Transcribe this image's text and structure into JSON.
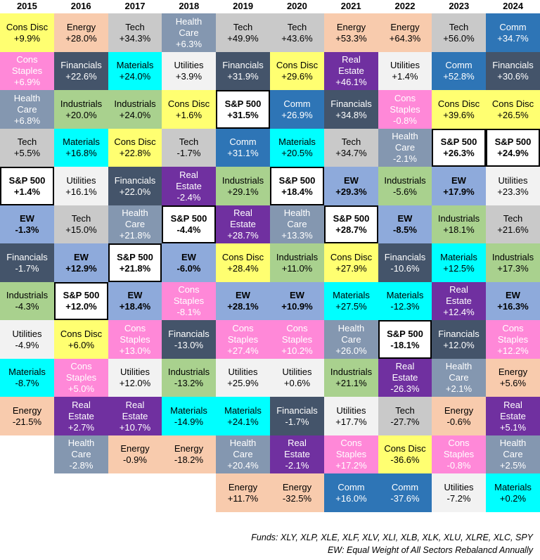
{
  "chart_data": {
    "type": "table",
    "title": "",
    "years": [
      "2015",
      "2016",
      "2017",
      "2018",
      "2019",
      "2020",
      "2021",
      "2022",
      "2023",
      "2024"
    ],
    "columns": [
      [
        {
          "sector": "Cons Disc",
          "ret": "+9.9%"
        },
        {
          "sector": "Cons Staples",
          "ret": "+6.9%"
        },
        {
          "sector": "Health Care",
          "ret": "+6.8%"
        },
        {
          "sector": "Tech",
          "ret": "+5.5%"
        },
        {
          "sector": "S&P 500",
          "ret": "+1.4%"
        },
        {
          "sector": "EW",
          "ret": "-1.3%"
        },
        {
          "sector": "Financials",
          "ret": "-1.7%"
        },
        {
          "sector": "Industrials",
          "ret": "-4.3%"
        },
        {
          "sector": "Utilities",
          "ret": "-4.9%"
        },
        {
          "sector": "Materials",
          "ret": "-8.7%"
        },
        {
          "sector": "Energy",
          "ret": "-21.5%"
        }
      ],
      [
        {
          "sector": "Energy",
          "ret": "+28.0%"
        },
        {
          "sector": "Financials",
          "ret": "+22.6%"
        },
        {
          "sector": "Industrials",
          "ret": "+20.0%"
        },
        {
          "sector": "Materials",
          "ret": "+16.8%"
        },
        {
          "sector": "Utilities",
          "ret": "+16.1%"
        },
        {
          "sector": "Tech",
          "ret": "+15.0%"
        },
        {
          "sector": "EW",
          "ret": "+12.9%"
        },
        {
          "sector": "S&P 500",
          "ret": "+12.0%"
        },
        {
          "sector": "Cons Disc",
          "ret": "+6.0%"
        },
        {
          "sector": "Cons Staples",
          "ret": "+5.0%"
        },
        {
          "sector": "Real Estate",
          "ret": "+2.7%"
        },
        {
          "sector": "Health Care",
          "ret": "-2.8%"
        }
      ],
      [
        {
          "sector": "Tech",
          "ret": "+34.3%"
        },
        {
          "sector": "Materials",
          "ret": "+24.0%"
        },
        {
          "sector": "Industrials",
          "ret": "+24.0%"
        },
        {
          "sector": "Cons Disc",
          "ret": "+22.8%"
        },
        {
          "sector": "Financials",
          "ret": "+22.0%"
        },
        {
          "sector": "Health Care",
          "ret": "+21.8%"
        },
        {
          "sector": "S&P 500",
          "ret": "+21.8%"
        },
        {
          "sector": "EW",
          "ret": "+18.4%"
        },
        {
          "sector": "Cons Staples",
          "ret": "+13.0%"
        },
        {
          "sector": "Utilities",
          "ret": "+12.0%"
        },
        {
          "sector": "Real Estate",
          "ret": "+10.7%"
        },
        {
          "sector": "Energy",
          "ret": "-0.9%"
        }
      ],
      [
        {
          "sector": "Health Care",
          "ret": "+6.3%"
        },
        {
          "sector": "Utilities",
          "ret": "+3.9%"
        },
        {
          "sector": "Cons Disc",
          "ret": "+1.6%"
        },
        {
          "sector": "Tech",
          "ret": "-1.7%"
        },
        {
          "sector": "Real Estate",
          "ret": "-2.4%"
        },
        {
          "sector": "S&P 500",
          "ret": "-4.4%"
        },
        {
          "sector": "EW",
          "ret": "-6.0%"
        },
        {
          "sector": "Cons Staples",
          "ret": "-8.1%"
        },
        {
          "sector": "Financials",
          "ret": "-13.0%"
        },
        {
          "sector": "Industrials",
          "ret": "-13.2%"
        },
        {
          "sector": "Materials",
          "ret": "-14.9%"
        },
        {
          "sector": "Energy",
          "ret": "-18.2%"
        }
      ],
      [
        {
          "sector": "Tech",
          "ret": "+49.9%"
        },
        {
          "sector": "Financials",
          "ret": "+31.9%"
        },
        {
          "sector": "S&P 500",
          "ret": "+31.5%"
        },
        {
          "sector": "Comm",
          "ret": "+31.1%"
        },
        {
          "sector": "Industrials",
          "ret": "+29.1%"
        },
        {
          "sector": "Real Estate",
          "ret": "+28.7%"
        },
        {
          "sector": "Cons Disc",
          "ret": "+28.4%"
        },
        {
          "sector": "EW",
          "ret": "+28.1%"
        },
        {
          "sector": "Cons Staples",
          "ret": "+27.4%"
        },
        {
          "sector": "Utilities",
          "ret": "+25.9%"
        },
        {
          "sector": "Materials",
          "ret": "+24.1%"
        },
        {
          "sector": "Health Care",
          "ret": "+20.4%"
        },
        {
          "sector": "Energy",
          "ret": "+11.7%"
        }
      ],
      [
        {
          "sector": "Tech",
          "ret": "+43.6%"
        },
        {
          "sector": "Cons Disc",
          "ret": "+29.6%"
        },
        {
          "sector": "Comm",
          "ret": "+26.9%"
        },
        {
          "sector": "Materials",
          "ret": "+20.5%"
        },
        {
          "sector": "S&P 500",
          "ret": "+18.4%"
        },
        {
          "sector": "Health Care",
          "ret": "+13.3%"
        },
        {
          "sector": "Industrials",
          "ret": "+11.0%"
        },
        {
          "sector": "EW",
          "ret": "+10.9%"
        },
        {
          "sector": "Cons Staples",
          "ret": "+10.2%"
        },
        {
          "sector": "Utilities",
          "ret": "+0.6%"
        },
        {
          "sector": "Financials",
          "ret": "-1.7%"
        },
        {
          "sector": "Real Estate",
          "ret": "-2.1%"
        },
        {
          "sector": "Energy",
          "ret": "-32.5%"
        }
      ],
      [
        {
          "sector": "Energy",
          "ret": "+53.3%"
        },
        {
          "sector": "Real Estate",
          "ret": "+46.1%"
        },
        {
          "sector": "Financials",
          "ret": "+34.8%"
        },
        {
          "sector": "Tech",
          "ret": "+34.7%"
        },
        {
          "sector": "EW",
          "ret": "+29.3%"
        },
        {
          "sector": "S&P 500",
          "ret": "+28.7%"
        },
        {
          "sector": "Cons Disc",
          "ret": "+27.9%"
        },
        {
          "sector": "Materials",
          "ret": "+27.5%"
        },
        {
          "sector": "Health Care",
          "ret": "+26.0%"
        },
        {
          "sector": "Industrials",
          "ret": "+21.1%"
        },
        {
          "sector": "Utilities",
          "ret": "+17.7%"
        },
        {
          "sector": "Cons Staples",
          "ret": "+17.2%"
        },
        {
          "sector": "Comm",
          "ret": "+16.0%"
        }
      ],
      [
        {
          "sector": "Energy",
          "ret": "+64.3%"
        },
        {
          "sector": "Utilities",
          "ret": "+1.4%"
        },
        {
          "sector": "Cons Staples",
          "ret": "-0.8%"
        },
        {
          "sector": "Health Care",
          "ret": "-2.1%"
        },
        {
          "sector": "Industrials",
          "ret": "-5.6%"
        },
        {
          "sector": "EW",
          "ret": "-8.5%"
        },
        {
          "sector": "Financials",
          "ret": "-10.6%"
        },
        {
          "sector": "Materials",
          "ret": "-12.3%"
        },
        {
          "sector": "S&P 500",
          "ret": "-18.1%"
        },
        {
          "sector": "Real Estate",
          "ret": "-26.3%"
        },
        {
          "sector": "Tech",
          "ret": "-27.7%"
        },
        {
          "sector": "Cons Disc",
          "ret": "-36.6%"
        },
        {
          "sector": "Comm",
          "ret": "-37.6%"
        }
      ],
      [
        {
          "sector": "Tech",
          "ret": "+56.0%"
        },
        {
          "sector": "Comm",
          "ret": "+52.8%"
        },
        {
          "sector": "Cons Disc",
          "ret": "+39.6%"
        },
        {
          "sector": "S&P 500",
          "ret": "+26.3%"
        },
        {
          "sector": "EW",
          "ret": "+17.9%"
        },
        {
          "sector": "Industrials",
          "ret": "+18.1%"
        },
        {
          "sector": "Materials",
          "ret": "+12.5%"
        },
        {
          "sector": "Real Estate",
          "ret": "+12.4%"
        },
        {
          "sector": "Financials",
          "ret": "+12.0%"
        },
        {
          "sector": "Health Care",
          "ret": "+2.1%"
        },
        {
          "sector": "Energy",
          "ret": "-0.6%"
        },
        {
          "sector": "Cons Staples",
          "ret": "-0.8%"
        },
        {
          "sector": "Utilities",
          "ret": "-7.2%"
        }
      ],
      [
        {
          "sector": "Comm",
          "ret": "+34.7%"
        },
        {
          "sector": "Financials",
          "ret": "+30.6%"
        },
        {
          "sector": "Cons Disc",
          "ret": "+26.5%"
        },
        {
          "sector": "S&P 500",
          "ret": "+24.9%"
        },
        {
          "sector": "Utilities",
          "ret": "+23.3%"
        },
        {
          "sector": "Tech",
          "ret": "+21.6%"
        },
        {
          "sector": "Industrials",
          "ret": "+17.3%"
        },
        {
          "sector": "EW",
          "ret": "+16.3%"
        },
        {
          "sector": "Cons Staples",
          "ret": "+12.2%"
        },
        {
          "sector": "Energy",
          "ret": "+5.6%"
        },
        {
          "sector": "Real Estate",
          "ret": "+5.1%"
        },
        {
          "sector": "Health Care",
          "ret": "+2.5%"
        },
        {
          "sector": "Materials",
          "ret": "+0.2%"
        }
      ]
    ],
    "sector_colors": {
      "Cons Disc": {
        "bg": "#ffff71",
        "fg": "#000000"
      },
      "Cons Staples": {
        "bg": "#ff88d8",
        "fg": "#ffffff"
      },
      "Health Care": {
        "bg": "#8497b0",
        "fg": "#ffffff"
      },
      "Tech": {
        "bg": "#c9c9c9",
        "fg": "#000000"
      },
      "S&P 500": {
        "bg": "#ffffff",
        "fg": "#000000"
      },
      "EW": {
        "bg": "#8eaadb",
        "fg": "#000000"
      },
      "Financials": {
        "bg": "#44546a",
        "fg": "#ffffff"
      },
      "Industrials": {
        "bg": "#a9d18e",
        "fg": "#000000"
      },
      "Utilities": {
        "bg": "#f2f2f2",
        "fg": "#000000"
      },
      "Materials": {
        "bg": "#00ffff",
        "fg": "#000000"
      },
      "Energy": {
        "bg": "#f8cbad",
        "fg": "#000000"
      },
      "Real Estate": {
        "bg": "#7030a0",
        "fg": "#ffffff"
      },
      "Comm": {
        "bg": "#2e75b6",
        "fg": "#ffffff"
      }
    }
  },
  "footnotes": {
    "funds": "Funds:  XLY, XLP, XLE, XLF, XLV, XLI, XLB, XLK, XLU, XLRE, XLC, SPY",
    "ew_note": "EW: Equal Weight of All Sectors Rebalancd Annually"
  }
}
